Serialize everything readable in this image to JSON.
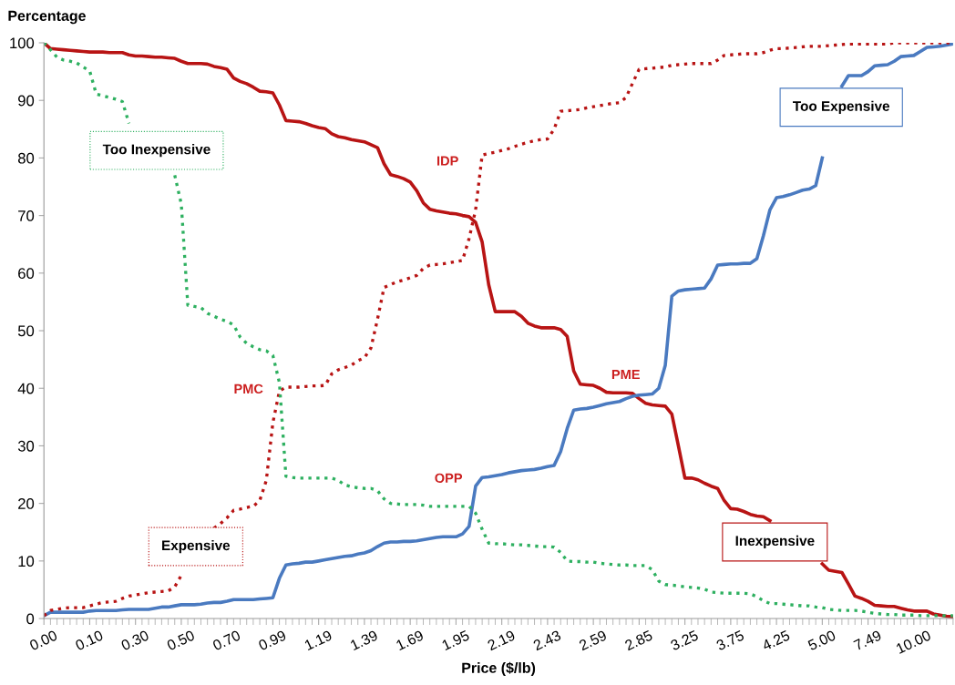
{
  "chart_data": {
    "type": "line",
    "ylabel": "Percentage",
    "xlabel": "Price ($/lb)",
    "categories": [
      "0.00",
      null,
      null,
      null,
      null,
      null,
      null,
      "0.10",
      null,
      null,
      null,
      null,
      null,
      null,
      "0.30",
      null,
      null,
      null,
      null,
      null,
      null,
      "0.50",
      null,
      null,
      null,
      null,
      null,
      null,
      "0.70",
      null,
      null,
      null,
      null,
      null,
      null,
      "0.99",
      null,
      null,
      null,
      null,
      null,
      null,
      "1.19",
      null,
      null,
      null,
      null,
      null,
      null,
      "1.39",
      null,
      null,
      null,
      null,
      null,
      null,
      "1.69",
      null,
      null,
      null,
      null,
      null,
      null,
      "1.95",
      null,
      null,
      null,
      null,
      null,
      null,
      "2.19",
      null,
      null,
      null,
      null,
      null,
      null,
      "2.43",
      null,
      null,
      null,
      null,
      null,
      null,
      "2.59",
      null,
      null,
      null,
      null,
      null,
      null,
      "2.85",
      null,
      null,
      null,
      null,
      null,
      null,
      "3.25",
      null,
      null,
      null,
      null,
      null,
      null,
      "3.75",
      null,
      null,
      null,
      null,
      null,
      null,
      "4.25",
      null,
      null,
      null,
      null,
      null,
      null,
      "5.00",
      null,
      null,
      null,
      null,
      null,
      null,
      "7.49",
      null,
      null,
      null,
      null,
      null,
      null,
      "10.00",
      null,
      null,
      null,
      null,
      null,
      null
    ],
    "ylim": [
      0,
      100
    ],
    "yticks": [
      0,
      10,
      20,
      30,
      40,
      50,
      60,
      70,
      80,
      90,
      100
    ],
    "grid": false,
    "legend": false,
    "marker": "none",
    "annotations": [
      "IDP",
      "PMC",
      "OPP",
      "PME"
    ],
    "series": [
      {
        "name": "Inexpensive",
        "color": "#b81414",
        "line_style": "solid",
        "values": [
          100,
          99,
          98.9,
          98.8,
          98.7,
          98.6,
          98.5,
          98.4,
          98.4,
          98.4,
          98.3,
          98.3,
          98.3,
          97.9,
          97.7,
          97.7,
          97.6,
          97.5,
          97.5,
          97.4,
          97.3,
          96.8,
          96.4,
          96.4,
          96.4,
          96.3,
          95.9,
          95.7,
          95.4,
          93.9,
          93.3,
          92.9,
          92.3,
          91.6,
          91.5,
          91.3,
          89.2,
          86.5,
          86.4,
          86.3,
          86,
          85.6,
          85.3,
          85.1,
          84.2,
          83.7,
          83.5,
          83.2,
          83,
          82.8,
          82.3,
          81.8,
          79,
          77.1,
          76.8,
          76.4,
          75.8,
          74.3,
          72.2,
          71.1,
          70.8,
          70.6,
          70.4,
          70.3,
          70,
          69.8,
          68.8,
          65.4,
          58,
          53.3,
          53.3,
          53.3,
          53.3,
          52.5,
          51.3,
          50.8,
          50.5,
          50.5,
          50.5,
          50.2,
          49,
          43,
          40.7,
          40.6,
          40.5,
          40,
          39.3,
          39.2,
          39.2,
          39.2,
          39.1,
          38.2,
          37.4,
          37.1,
          37,
          36.9,
          35.5,
          30,
          24.4,
          24.4,
          24.1,
          23.5,
          23,
          22.6,
          20.5,
          19.1,
          19,
          18.6,
          18.1,
          17.8,
          17.7,
          17,
          null,
          null,
          null,
          null,
          null,
          null,
          null,
          9.5,
          8.4,
          8.2,
          8,
          6,
          3.9,
          3.5,
          3,
          2.3,
          2.2,
          2.1,
          2.1,
          1.8,
          1.5,
          1.3,
          1.3,
          1.3,
          0.8,
          0.6,
          0.4,
          0.3
        ]
      },
      {
        "name": "Too Expensive",
        "color": "#4a7ac0",
        "line_style": "solid",
        "values": [
          0.5,
          1.1,
          1.1,
          1.1,
          1.1,
          1.1,
          1.1,
          1.3,
          1.4,
          1.4,
          1.4,
          1.4,
          1.5,
          1.6,
          1.6,
          1.6,
          1.6,
          1.8,
          2,
          2,
          2.2,
          2.4,
          2.4,
          2.4,
          2.5,
          2.7,
          2.8,
          2.8,
          3,
          3.3,
          3.3,
          3.3,
          3.3,
          3.4,
          3.5,
          3.6,
          7,
          9.3,
          9.5,
          9.6,
          9.8,
          9.8,
          10,
          10.2,
          10.4,
          10.6,
          10.8,
          10.9,
          11.2,
          11.4,
          11.8,
          12.5,
          13.1,
          13.3,
          13.3,
          13.4,
          13.4,
          13.5,
          13.7,
          13.9,
          14.1,
          14.2,
          14.2,
          14.2,
          14.7,
          16,
          23,
          24.5,
          24.6,
          24.8,
          25,
          25.3,
          25.5,
          25.7,
          25.8,
          25.9,
          26.1,
          26.4,
          26.6,
          29,
          33,
          36.2,
          36.4,
          36.5,
          36.7,
          37,
          37.3,
          37.5,
          37.7,
          38.2,
          38.6,
          38.8,
          38.9,
          39,
          40,
          44,
          56,
          56.9,
          57.1,
          57.2,
          57.3,
          57.4,
          59,
          61.4,
          61.5,
          61.6,
          61.6,
          61.7,
          61.7,
          62.5,
          66.5,
          71,
          73.1,
          73.3,
          73.6,
          74,
          74.4,
          74.6,
          75.2,
          80,
          null,
          null,
          92.5,
          94.3,
          94.3,
          94.3,
          95,
          96,
          96.1,
          96.2,
          96.8,
          97.6,
          97.7,
          97.8,
          98.5,
          99.2,
          99.3,
          99.4,
          99.6,
          99.8
        ]
      },
      {
        "name": "Expensive",
        "color": "#b81414",
        "line_style": "dotted",
        "values": [
          0.5,
          1.4,
          1.6,
          1.8,
          1.9,
          1.9,
          1.9,
          2.2,
          2.5,
          2.8,
          2.9,
          3,
          3.5,
          3.9,
          4.1,
          4.3,
          4.5,
          4.6,
          4.7,
          4.8,
          5.5,
          7.5,
          null,
          null,
          null,
          null,
          15.7,
          16.5,
          17.5,
          18.8,
          19,
          19.3,
          19.5,
          20.5,
          24,
          34,
          39.5,
          40.2,
          40.2,
          40.2,
          40.3,
          40.4,
          40.4,
          40.5,
          42.5,
          43.2,
          43.6,
          44,
          44.8,
          45.3,
          47,
          52,
          57.5,
          58,
          58.5,
          58.8,
          59.2,
          59.6,
          60.8,
          61.4,
          61.5,
          61.6,
          61.8,
          62,
          62.2,
          66,
          71,
          80.5,
          80.8,
          81,
          81.3,
          81.6,
          82,
          82.4,
          82.7,
          83,
          83.2,
          83.3,
          85,
          88.1,
          88.2,
          88.3,
          88.4,
          88.7,
          88.9,
          89.1,
          89.3,
          89.5,
          89.6,
          90.5,
          93,
          95.4,
          95.5,
          95.6,
          95.7,
          95.8,
          96.1,
          96.2,
          96.3,
          96.4,
          96.4,
          96.4,
          96.4,
          97,
          97.8,
          97.9,
          98,
          98.1,
          98.1,
          98.1,
          98.3,
          98.7,
          99,
          99,
          99.1,
          99.2,
          99.3,
          99.4,
          99.4,
          99.4,
          99.5,
          99.6,
          99.7,
          99.8,
          99.8,
          99.8,
          99.8,
          99.8,
          99.8,
          99.8,
          100,
          100,
          100,
          100,
          100,
          100,
          100,
          100,
          100,
          100
        ]
      },
      {
        "name": "Too Inexpensive",
        "color": "#2eb060",
        "line_style": "dotted",
        "values": [
          100,
          98.8,
          97.5,
          97,
          96.8,
          96.5,
          95.8,
          95.1,
          91.1,
          90.8,
          90.5,
          90.2,
          89.8,
          86,
          null,
          null,
          null,
          null,
          null,
          null,
          77,
          72,
          54.4,
          54.2,
          54,
          53,
          52.5,
          52,
          51.6,
          51,
          48.9,
          47.8,
          47.2,
          46.7,
          46.5,
          45.7,
          41,
          24.7,
          24.5,
          24.4,
          24.4,
          24.4,
          24.4,
          24.4,
          24.4,
          24,
          23.2,
          22.9,
          22.7,
          22.6,
          22.6,
          22.2,
          20.8,
          20,
          19.9,
          19.8,
          19.8,
          19.8,
          19.7,
          19.5,
          19.5,
          19.5,
          19.5,
          19.5,
          19.5,
          19.5,
          18.3,
          15.5,
          13.1,
          13,
          13,
          12.9,
          12.8,
          12.8,
          12.7,
          12.6,
          12.5,
          12.5,
          12.4,
          11.5,
          10,
          9.9,
          9.9,
          9.8,
          9.8,
          9.6,
          9.5,
          9.4,
          9.3,
          9.3,
          9.2,
          9.2,
          9.2,
          8.5,
          6.5,
          5.9,
          5.8,
          5.7,
          5.5,
          5.4,
          5.3,
          5.1,
          4.6,
          4.5,
          4.4,
          4.4,
          4.4,
          4.4,
          4.3,
          3.8,
          3.1,
          2.6,
          2.6,
          2.5,
          2.4,
          2.3,
          2.2,
          2.2,
          2,
          1.9,
          1.6,
          1.5,
          1.4,
          1.4,
          1.4,
          1.3,
          1.1,
          0.9,
          0.8,
          0.7,
          0.7,
          0.6,
          0.6,
          0.6,
          0.5,
          0.5,
          0.5,
          0.5,
          0.5,
          0.5
        ]
      }
    ]
  }
}
